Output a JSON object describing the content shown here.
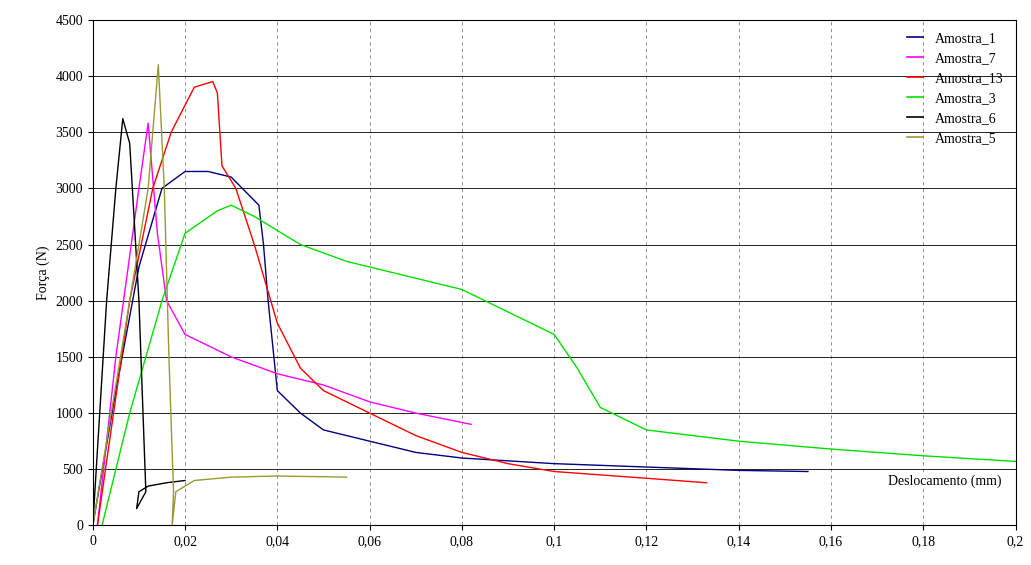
{
  "chart_data": {
    "type": "line",
    "x_label": "Deslocamento (mm)",
    "y_label": "Força (N)",
    "xlim": [
      0,
      0.2
    ],
    "xticks": [
      0,
      {
        "value": 0.02,
        "label": "0,02"
      },
      {
        "value": 0.04,
        "label": "0,04"
      },
      {
        "value": 0.06,
        "label": "0,06"
      },
      {
        "value": 0.08,
        "label": "0,08"
      },
      {
        "value": 0.1,
        "label": "0,1"
      },
      {
        "value": 0.12,
        "label": "0,12"
      },
      {
        "value": 0.14,
        "label": "0,14"
      },
      {
        "value": 0.16,
        "label": "0,16"
      },
      {
        "value": 0.18,
        "label": "0,18"
      },
      {
        "value": 0.2,
        "label": "0,2"
      }
    ],
    "ylim": [
      0,
      4500
    ],
    "yticks": [
      0,
      500,
      1000,
      1500,
      2000,
      2500,
      3000,
      3500,
      4000,
      4500
    ],
    "grid": true,
    "legend": "upper right",
    "series": [
      {
        "name": "Amostra_1",
        "color": "#000080",
        "x": [
          0,
          0.005,
          0.01,
          0.015,
          0.02,
          0.025,
          0.03,
          0.036,
          0.037,
          0.038,
          0.04,
          0.045,
          0.05,
          0.06,
          0.07,
          0.08,
          0.1,
          0.12,
          0.14,
          0.155
        ],
        "values": [
          0,
          1200,
          2300,
          3000,
          3150,
          3150,
          3100,
          2850,
          2500,
          2000,
          1200,
          1000,
          850,
          750,
          650,
          600,
          550,
          520,
          490,
          480
        ]
      },
      {
        "name": "Amostra_7",
        "color": "#ff00ff",
        "x": [
          0.001,
          0.005,
          0.01,
          0.012,
          0.014,
          0.016,
          0.02,
          0.03,
          0.04,
          0.05,
          0.06,
          0.07,
          0.082
        ],
        "values": [
          0,
          1500,
          3000,
          3580,
          2600,
          2000,
          1700,
          1500,
          1350,
          1250,
          1100,
          1000,
          900
        ]
      },
      {
        "name": "Amostra_13",
        "color": "#ff0000",
        "x": [
          0.001,
          0.008,
          0.013,
          0.017,
          0.022,
          0.026,
          0.027,
          0.028,
          0.031,
          0.035,
          0.04,
          0.045,
          0.05,
          0.06,
          0.07,
          0.08,
          0.09,
          0.1,
          0.12,
          0.133
        ],
        "values": [
          0,
          2000,
          3000,
          3500,
          3900,
          3950,
          3850,
          3200,
          3000,
          2500,
          1800,
          1400,
          1200,
          1000,
          800,
          650,
          550,
          480,
          420,
          380
        ]
      },
      {
        "name": "Amostra_3",
        "color": "#00e000",
        "x": [
          0.002,
          0.008,
          0.015,
          0.02,
          0.027,
          0.03,
          0.035,
          0.045,
          0.055,
          0.065,
          0.08,
          0.09,
          0.1,
          0.105,
          0.11,
          0.12,
          0.14,
          0.16,
          0.18,
          0.2
        ],
        "values": [
          0,
          1000,
          2000,
          2600,
          2800,
          2850,
          2750,
          2500,
          2350,
          2250,
          2100,
          1900,
          1700,
          1400,
          1050,
          850,
          750,
          680,
          620,
          570
        ]
      },
      {
        "name": "Amostra_6",
        "color": "#000000",
        "x": [
          0,
          0.003,
          0.005,
          0.0065,
          0.008,
          0.01,
          0.0115,
          0.0095,
          0.01,
          0.012,
          0.016,
          0.02
        ],
        "values": [
          0,
          2000,
          3000,
          3620,
          3400,
          2000,
          300,
          150,
          300,
          350,
          380,
          400
        ]
      },
      {
        "name": "Amostra_5",
        "color": "#999933",
        "x": [
          0,
          0.006,
          0.01,
          0.012,
          0.0142,
          0.0155,
          0.0165,
          0.0175,
          0.0172,
          0.018,
          0.022,
          0.03,
          0.04,
          0.055
        ],
        "values": [
          0,
          1500,
          2500,
          3000,
          4100,
          3000,
          1500,
          300,
          0,
          300,
          400,
          430,
          440,
          430
        ]
      }
    ]
  }
}
